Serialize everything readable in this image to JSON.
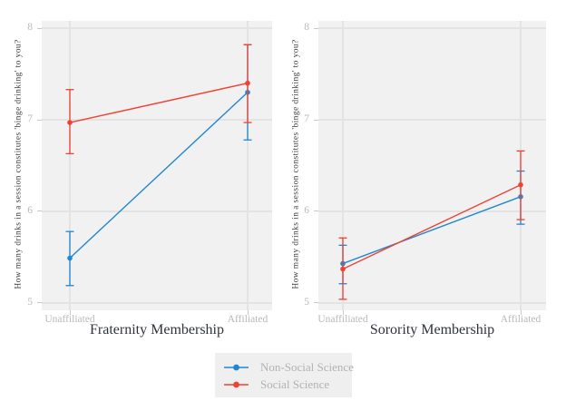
{
  "figure": {
    "background": "#ffffff",
    "panel_background": "#f1f1f1",
    "gridline_color": "#e3e3e3",
    "tick_color": "#c9c9c9",
    "tick_label_color": "#b9b9b9",
    "axis_title_color": "#30343a"
  },
  "chart_data": [
    {
      "type": "line",
      "title": "",
      "xlabel": "Fraternity Membership",
      "ylabel": "How many drinks in a session constitutes 'binge drinking' to you?",
      "categories": [
        "Unaffiliated",
        "Affiliated"
      ],
      "yticks": [
        5,
        6,
        7,
        8
      ],
      "ylim": [
        4.92,
        8.08
      ],
      "grid": true,
      "series": [
        {
          "name": "Non-Social Science",
          "color": "#2186d0",
          "values": [
            5.49,
            7.3
          ],
          "err_low": [
            5.19,
            6.78
          ],
          "err_high": [
            5.78,
            7.82
          ]
        },
        {
          "name": "Social Science",
          "color": "#f04132",
          "values": [
            6.97,
            7.4
          ],
          "err_low": [
            6.63,
            6.97
          ],
          "err_high": [
            7.33,
            7.82
          ]
        }
      ]
    },
    {
      "type": "line",
      "title": "",
      "xlabel": "Sorority Membership",
      "ylabel": "How many drinks in a session constitutes 'binge drinking' to you?",
      "categories": [
        "Unaffiliated",
        "Affiliated"
      ],
      "yticks": [
        5,
        6,
        7,
        8
      ],
      "ylim": [
        4.92,
        8.08
      ],
      "grid": true,
      "series": [
        {
          "name": "Non-Social Science",
          "color": "#2186d0",
          "values": [
            5.43,
            6.16
          ],
          "err_low": [
            5.21,
            5.86
          ],
          "err_high": [
            5.63,
            6.44
          ]
        },
        {
          "name": "Social Science",
          "color": "#f04132",
          "values": [
            5.37,
            6.29
          ],
          "err_low": [
            5.04,
            5.91
          ],
          "err_high": [
            5.71,
            6.66
          ]
        }
      ]
    }
  ],
  "legend": {
    "position": "bottom-center",
    "entries": [
      {
        "label": "Non-Social Science",
        "color": "#2186d0"
      },
      {
        "label": "Social Science",
        "color": "#f04132"
      }
    ]
  }
}
